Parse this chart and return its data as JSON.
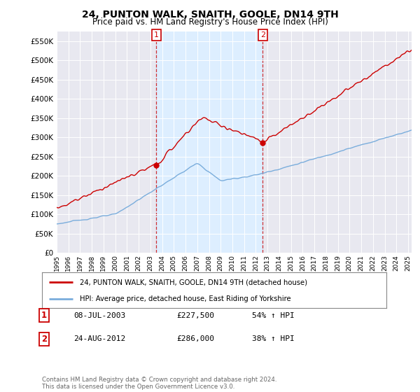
{
  "title": "24, PUNTON WALK, SNAITH, GOOLE, DN14 9TH",
  "subtitle": "Price paid vs. HM Land Registry's House Price Index (HPI)",
  "property_label": "24, PUNTON WALK, SNAITH, GOOLE, DN14 9TH (detached house)",
  "hpi_label": "HPI: Average price, detached house, East Riding of Yorkshire",
  "transaction1_date": "08-JUL-2003",
  "transaction1_price": 227500,
  "transaction1_hpi": "54% ↑ HPI",
  "transaction2_date": "24-AUG-2012",
  "transaction2_price": 286000,
  "transaction2_hpi": "38% ↑ HPI",
  "footer": "Contains HM Land Registry data © Crown copyright and database right 2024.\nThis data is licensed under the Open Government Licence v3.0.",
  "property_color": "#cc0000",
  "hpi_color": "#7aaddc",
  "shade_color": "#ddeeff",
  "vline_color": "#cc0000",
  "ylim": [
    0,
    575000
  ],
  "yticks": [
    0,
    50000,
    100000,
    150000,
    200000,
    250000,
    300000,
    350000,
    400000,
    450000,
    500000,
    550000
  ],
  "background_color": "#ffffff",
  "plot_bg_color": "#e8e8f0",
  "t1": 2003.5,
  "t2": 2012.583
}
